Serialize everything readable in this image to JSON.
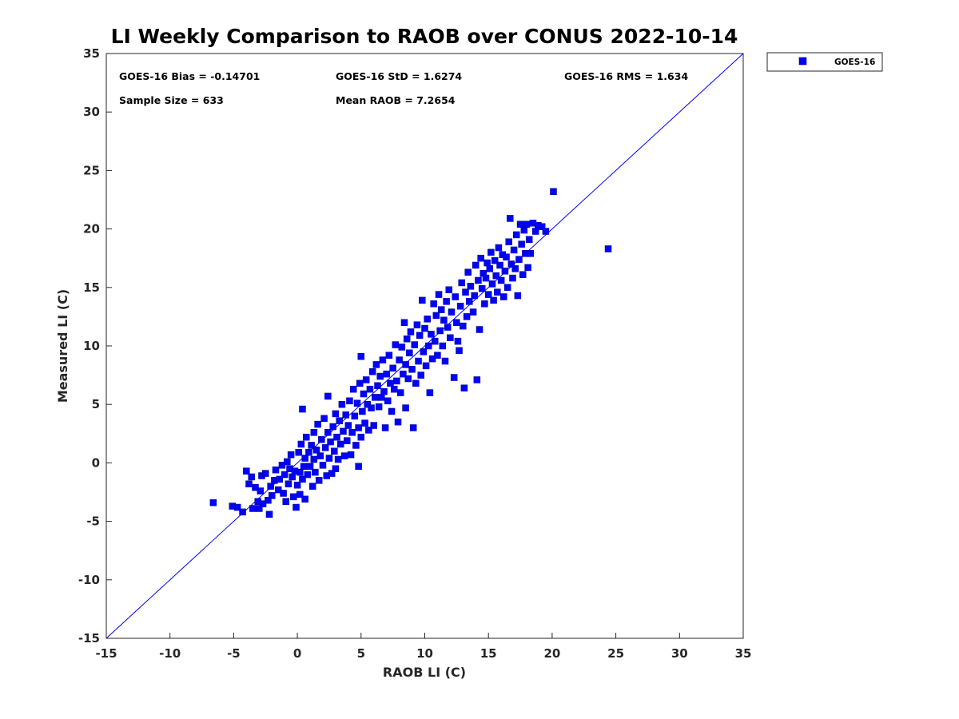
{
  "chart_data": {
    "type": "scatter",
    "title": "LI Weekly Comparison to RAOB over CONUS 2022-10-14",
    "xlabel": "RAOB LI (C)",
    "ylabel": "Measured LI (C)",
    "xlim": [
      -15,
      35
    ],
    "ylim": [
      -15,
      35
    ],
    "xticks": [
      -15,
      -10,
      -5,
      0,
      5,
      10,
      15,
      20,
      25,
      30,
      35
    ],
    "yticks": [
      -15,
      -10,
      -5,
      0,
      5,
      10,
      15,
      20,
      25,
      30,
      35
    ],
    "grid": false,
    "legend_position": "outside-top-right",
    "reference_line": {
      "type": "identity",
      "color": "#0000ff"
    },
    "stats": {
      "bias": "GOES-16 Bias = -0.14701",
      "std": "GOES-16 StD = 1.6274",
      "rms": "GOES-16 RMS = 1.634",
      "sample_size": "Sample Size = 633",
      "mean_raob": "Mean RAOB = 7.2654"
    },
    "series": [
      {
        "name": "GOES-16",
        "color": "#0000ff",
        "marker": "square",
        "points": [
          [
            -6.6,
            -3.4
          ],
          [
            -5.1,
            -3.7
          ],
          [
            -4.7,
            -3.8
          ],
          [
            -4.3,
            -4.2
          ],
          [
            -4.0,
            -0.7
          ],
          [
            -3.8,
            -1.8
          ],
          [
            -3.6,
            -1.2
          ],
          [
            -3.5,
            -3.9
          ],
          [
            -3.3,
            -2.1
          ],
          [
            -3.1,
            -3.3
          ],
          [
            -3.0,
            -3.9
          ],
          [
            -2.9,
            -2.4
          ],
          [
            -2.8,
            -1.1
          ],
          [
            -2.7,
            -3.5
          ],
          [
            -2.5,
            -0.9
          ],
          [
            -2.3,
            -3.2
          ],
          [
            -2.2,
            -4.4
          ],
          [
            -2.1,
            -2.0
          ],
          [
            -2.0,
            -2.8
          ],
          [
            -1.8,
            -1.5
          ],
          [
            -1.7,
            -0.6
          ],
          [
            -1.5,
            -2.3
          ],
          [
            -1.4,
            -1.4
          ],
          [
            -1.2,
            -0.2
          ],
          [
            -1.1,
            -2.6
          ],
          [
            -1.0,
            -1.0
          ],
          [
            -0.9,
            -3.3
          ],
          [
            -0.8,
            0.1
          ],
          [
            -0.7,
            -1.8
          ],
          [
            -0.6,
            -0.5
          ],
          [
            -0.5,
            0.7
          ],
          [
            -0.4,
            -1.2
          ],
          [
            -0.3,
            -2.9
          ],
          [
            -0.2,
            -0.7
          ],
          [
            -0.1,
            -3.8
          ],
          [
            0.0,
            -1.9
          ],
          [
            0.1,
            0.9
          ],
          [
            0.2,
            -2.7
          ],
          [
            0.2,
            -0.8
          ],
          [
            0.3,
            1.6
          ],
          [
            0.4,
            -1.4
          ],
          [
            0.4,
            4.6
          ],
          [
            0.5,
            -0.3
          ],
          [
            0.6,
            0.4
          ],
          [
            0.6,
            -3.1
          ],
          [
            0.7,
            2.2
          ],
          [
            0.8,
            -1.0
          ],
          [
            0.9,
            0.9
          ],
          [
            1.0,
            -0.3
          ],
          [
            1.1,
            1.5
          ],
          [
            1.2,
            -2.0
          ],
          [
            1.3,
            0.3
          ],
          [
            1.3,
            2.6
          ],
          [
            1.4,
            -0.8
          ],
          [
            1.5,
            1.1
          ],
          [
            1.6,
            3.3
          ],
          [
            1.7,
            -1.5
          ],
          [
            1.8,
            0.6
          ],
          [
            1.9,
            2.0
          ],
          [
            2.0,
            -0.2
          ],
          [
            2.1,
            3.8
          ],
          [
            2.2,
            1.3
          ],
          [
            2.3,
            -1.1
          ],
          [
            2.4,
            2.6
          ],
          [
            2.4,
            5.7
          ],
          [
            2.5,
            0.4
          ],
          [
            2.6,
            1.8
          ],
          [
            2.7,
            -0.9
          ],
          [
            2.8,
            3.1
          ],
          [
            2.9,
            1.0
          ],
          [
            3.0,
            4.2
          ],
          [
            3.0,
            -0.5
          ],
          [
            3.1,
            2.2
          ],
          [
            3.2,
            0.3
          ],
          [
            3.3,
            3.6
          ],
          [
            3.4,
            1.6
          ],
          [
            3.5,
            5.0
          ],
          [
            3.6,
            2.7
          ],
          [
            3.7,
            0.6
          ],
          [
            3.8,
            4.1
          ],
          [
            3.9,
            1.9
          ],
          [
            4.0,
            3.2
          ],
          [
            4.1,
            5.3
          ],
          [
            4.2,
            0.7
          ],
          [
            4.3,
            2.6
          ],
          [
            4.4,
            6.3
          ],
          [
            4.5,
            4.0
          ],
          [
            4.6,
            1.5
          ],
          [
            4.7,
            5.1
          ],
          [
            4.8,
            3.0
          ],
          [
            4.8,
            -0.3
          ],
          [
            4.9,
            6.8
          ],
          [
            5.0,
            2.2
          ],
          [
            5.0,
            9.1
          ],
          [
            5.1,
            4.4
          ],
          [
            5.2,
            5.9
          ],
          [
            5.3,
            3.4
          ],
          [
            5.4,
            7.1
          ],
          [
            5.5,
            5.0
          ],
          [
            5.6,
            2.8
          ],
          [
            5.7,
            6.3
          ],
          [
            5.8,
            4.7
          ],
          [
            5.9,
            7.8
          ],
          [
            6.0,
            3.2
          ],
          [
            6.1,
            5.6
          ],
          [
            6.2,
            8.4
          ],
          [
            6.3,
            6.6
          ],
          [
            6.4,
            4.8
          ],
          [
            6.5,
            7.4
          ],
          [
            6.6,
            5.6
          ],
          [
            6.7,
            8.8
          ],
          [
            6.8,
            6.1
          ],
          [
            6.9,
            3.0
          ],
          [
            7.0,
            7.6
          ],
          [
            7.1,
            5.3
          ],
          [
            7.2,
            9.2
          ],
          [
            7.3,
            6.8
          ],
          [
            7.4,
            4.4
          ],
          [
            7.5,
            8.1
          ],
          [
            7.6,
            6.3
          ],
          [
            7.7,
            10.1
          ],
          [
            7.8,
            7.0
          ],
          [
            7.9,
            3.5
          ],
          [
            8.0,
            8.8
          ],
          [
            8.1,
            6.0
          ],
          [
            8.2,
            9.9
          ],
          [
            8.3,
            7.6
          ],
          [
            8.4,
            12.0
          ],
          [
            8.5,
            8.4
          ],
          [
            8.5,
            4.7
          ],
          [
            8.6,
            10.6
          ],
          [
            8.7,
            7.2
          ],
          [
            8.8,
            9.4
          ],
          [
            8.9,
            11.2
          ],
          [
            9.0,
            8.0
          ],
          [
            9.1,
            3.0
          ],
          [
            9.2,
            10.1
          ],
          [
            9.3,
            6.8
          ],
          [
            9.4,
            11.8
          ],
          [
            9.5,
            8.7
          ],
          [
            9.6,
            10.9
          ],
          [
            9.7,
            7.5
          ],
          [
            9.8,
            13.9
          ],
          [
            9.9,
            9.5
          ],
          [
            10.0,
            11.5
          ],
          [
            10.1,
            8.3
          ],
          [
            10.2,
            12.3
          ],
          [
            10.3,
            10.0
          ],
          [
            10.4,
            6.0
          ],
          [
            10.5,
            11.0
          ],
          [
            10.6,
            8.9
          ],
          [
            10.7,
            13.6
          ],
          [
            10.8,
            10.4
          ],
          [
            10.9,
            12.6
          ],
          [
            11.0,
            9.2
          ],
          [
            11.1,
            14.4
          ],
          [
            11.2,
            11.3
          ],
          [
            11.3,
            13.1
          ],
          [
            11.4,
            10.0
          ],
          [
            11.5,
            12.2
          ],
          [
            11.6,
            8.7
          ],
          [
            11.7,
            13.8
          ],
          [
            11.8,
            11.6
          ],
          [
            11.9,
            14.8
          ],
          [
            12.0,
            10.7
          ],
          [
            12.1,
            12.9
          ],
          [
            12.3,
            7.3
          ],
          [
            12.4,
            14.2
          ],
          [
            12.5,
            12.0
          ],
          [
            12.6,
            10.4
          ],
          [
            12.7,
            9.6
          ],
          [
            12.8,
            13.4
          ],
          [
            12.9,
            15.4
          ],
          [
            13.0,
            11.7
          ],
          [
            13.1,
            6.4
          ],
          [
            13.2,
            14.6
          ],
          [
            13.3,
            12.5
          ],
          [
            13.4,
            16.3
          ],
          [
            13.5,
            13.8
          ],
          [
            13.6,
            15.1
          ],
          [
            13.8,
            12.9
          ],
          [
            13.9,
            14.3
          ],
          [
            14.0,
            16.9
          ],
          [
            14.1,
            7.1
          ],
          [
            14.2,
            15.6
          ],
          [
            14.3,
            11.4
          ],
          [
            14.4,
            17.5
          ],
          [
            14.5,
            14.9
          ],
          [
            14.6,
            16.2
          ],
          [
            14.7,
            13.6
          ],
          [
            14.8,
            15.8
          ],
          [
            14.9,
            17.1
          ],
          [
            15.0,
            14.4
          ],
          [
            15.1,
            16.6
          ],
          [
            15.2,
            18.0
          ],
          [
            15.3,
            15.3
          ],
          [
            15.4,
            13.9
          ],
          [
            15.5,
            17.3
          ],
          [
            15.6,
            16.0
          ],
          [
            15.7,
            14.6
          ],
          [
            15.8,
            18.4
          ],
          [
            15.9,
            16.9
          ],
          [
            16.0,
            15.6
          ],
          [
            16.1,
            17.8
          ],
          [
            16.2,
            14.2
          ],
          [
            16.3,
            16.4
          ],
          [
            16.4,
            17.6
          ],
          [
            16.5,
            15.0
          ],
          [
            16.6,
            18.9
          ],
          [
            16.7,
            20.9
          ],
          [
            16.8,
            17.0
          ],
          [
            16.9,
            15.8
          ],
          [
            17.0,
            18.2
          ],
          [
            17.1,
            16.6
          ],
          [
            17.2,
            19.5
          ],
          [
            17.3,
            14.3
          ],
          [
            17.4,
            17.4
          ],
          [
            17.5,
            20.4
          ],
          [
            17.6,
            18.7
          ],
          [
            17.7,
            16.1
          ],
          [
            17.8,
            19.9
          ],
          [
            17.9,
            17.9
          ],
          [
            18.0,
            20.4
          ],
          [
            18.1,
            16.7
          ],
          [
            18.2,
            19.1
          ],
          [
            18.3,
            17.9
          ],
          [
            18.5,
            20.5
          ],
          [
            18.7,
            19.8
          ],
          [
            18.9,
            20.3
          ],
          [
            19.2,
            20.2
          ],
          [
            19.5,
            19.8
          ],
          [
            20.1,
            23.2
          ],
          [
            24.4,
            18.3
          ]
        ]
      }
    ]
  }
}
